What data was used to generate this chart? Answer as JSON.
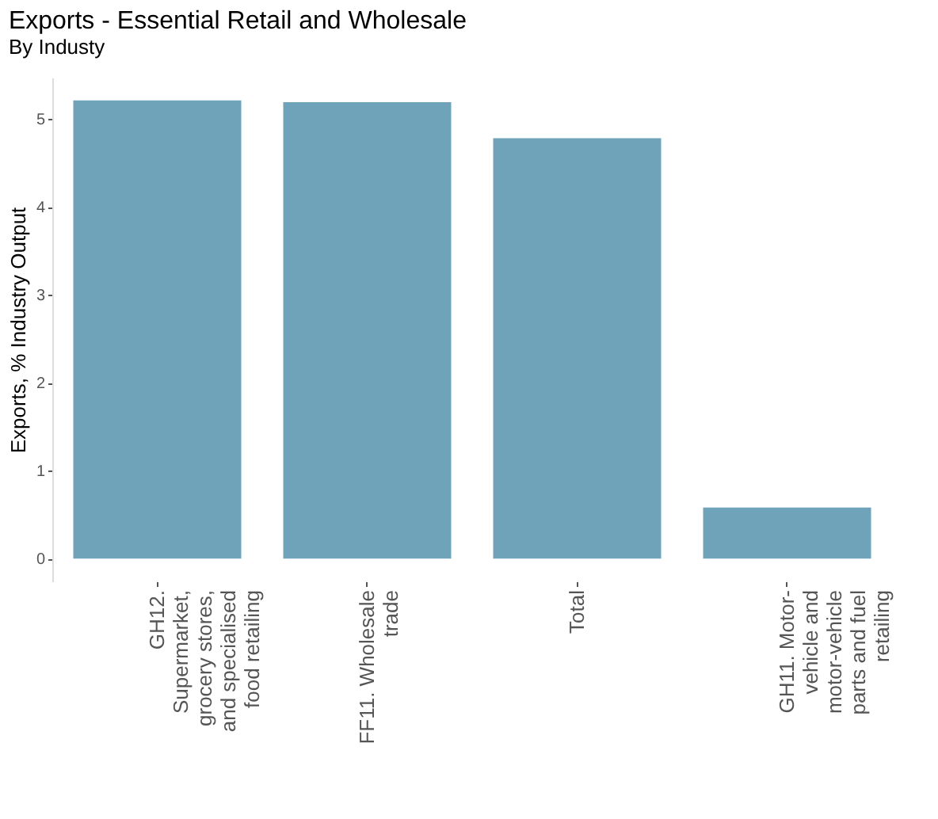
{
  "chart_data": {
    "type": "bar",
    "title": "Exports - Essential Retail and Wholesale",
    "subtitle": "By Industy",
    "ylabel": "Exports, % Industry Output",
    "categories": [
      "GH12. Supermarket, grocery stores, and specialised food retailing",
      "FF11. Wholesale trade",
      "Total",
      "GH11. Motor-vehicle and motor-vehicle parts and fuel retailing"
    ],
    "values": [
      5.21,
      5.19,
      4.78,
      0.58
    ],
    "color": "#6fa3b9",
    "ylim": [
      -0.26,
      5.47
    ],
    "yticks": [
      0,
      1,
      2,
      3,
      4,
      5
    ],
    "grid": false
  }
}
